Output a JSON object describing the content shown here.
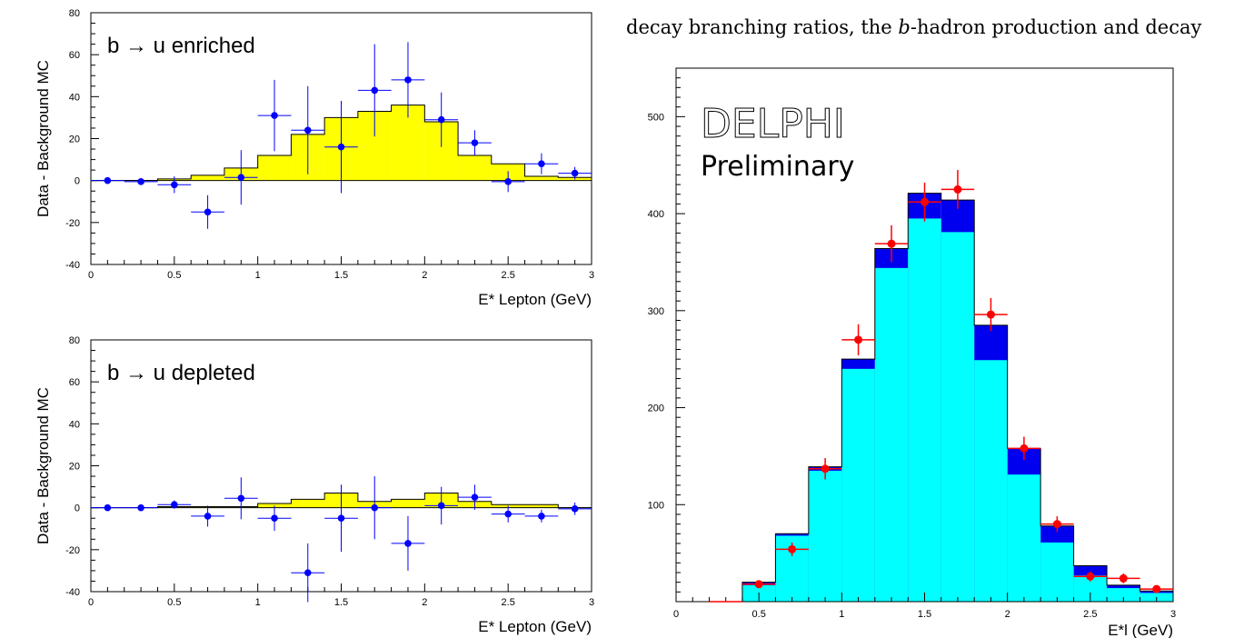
{
  "document": {
    "line1_pre": "decay branching ratios, the ",
    "line1_b": "b",
    "line1_post": "-hadron production and decay"
  },
  "chart_data": [
    {
      "type": "bar",
      "annotation": "b → u enriched",
      "xlabel": "E* Lepton (GeV)",
      "ylabel": "Data - Background MC",
      "xlim": [
        0,
        3
      ],
      "ylim": [
        -40,
        80
      ],
      "xticks": [
        0,
        0.5,
        1,
        1.5,
        2,
        2.5,
        3
      ],
      "yticks": [
        -40,
        -20,
        0,
        20,
        40,
        60,
        80
      ],
      "bin_edges": [
        0,
        0.2,
        0.4,
        0.6,
        0.8,
        1.0,
        1.2,
        1.4,
        1.6,
        1.8,
        2.0,
        2.2,
        2.4,
        2.6,
        2.8,
        3.0
      ],
      "mc_values": [
        0,
        0,
        0.8,
        2.5,
        6,
        12,
        22,
        30,
        33,
        36,
        28,
        12,
        8,
        2,
        1.5
      ],
      "fill_color": "#ffff00",
      "points": {
        "x": [
          0.1,
          0.3,
          0.5,
          0.7,
          0.9,
          1.1,
          1.3,
          1.5,
          1.7,
          1.9,
          2.1,
          2.3,
          2.5,
          2.7,
          2.9
        ],
        "y": [
          0,
          -0.5,
          -2,
          -15,
          1.5,
          31,
          24,
          16,
          43,
          48,
          29,
          18,
          -0.5,
          8,
          3.5
        ],
        "yerr": [
          0.5,
          0.5,
          4,
          8,
          13,
          17,
          21,
          22,
          22,
          18,
          13,
          6,
          5,
          5,
          3
        ],
        "color": "#0000ff"
      }
    },
    {
      "type": "bar",
      "annotation": "b → u depleted",
      "xlabel": "E* Lepton (GeV)",
      "ylabel": "Data - Background MC",
      "xlim": [
        0,
        3
      ],
      "ylim": [
        -40,
        80
      ],
      "xticks": [
        0,
        0.5,
        1,
        1.5,
        2,
        2.5,
        3
      ],
      "yticks": [
        -40,
        -20,
        0,
        20,
        40,
        60,
        80
      ],
      "bin_edges": [
        0,
        0.2,
        0.4,
        0.6,
        0.8,
        1.0,
        1.2,
        1.4,
        1.6,
        1.8,
        2.0,
        2.2,
        2.4,
        2.6,
        2.8,
        3.0
      ],
      "mc_values": [
        0,
        0,
        0.5,
        0.5,
        0.5,
        2,
        4,
        7,
        3,
        4,
        7,
        3,
        1.5,
        1.5,
        0
      ],
      "fill_color": "#ffff00",
      "points": {
        "x": [
          0.1,
          0.3,
          0.5,
          0.7,
          0.9,
          1.1,
          1.3,
          1.5,
          1.7,
          1.9,
          2.1,
          2.3,
          2.5,
          2.7,
          2.9
        ],
        "y": [
          0,
          0,
          1.5,
          -4,
          4.5,
          -5,
          -31,
          -5,
          0,
          -17,
          1,
          5,
          -3,
          -4,
          -0.5
        ],
        "yerr": [
          0.5,
          0.5,
          2,
          5,
          10,
          6,
          14,
          16,
          15,
          13,
          9,
          6,
          4,
          3,
          3
        ],
        "color": "#0000ff"
      }
    },
    {
      "type": "bar",
      "title": "DELPHI",
      "subtitle": "Preliminary",
      "xlabel": "E*l (GeV)",
      "xlim": [
        0,
        3
      ],
      "ylim": [
        0,
        550
      ],
      "xticks": [
        0,
        0.5,
        1,
        1.5,
        2,
        2.5,
        3
      ],
      "yticks": [
        100,
        200,
        300,
        400,
        500
      ],
      "bin_edges": [
        0,
        0.2,
        0.4,
        0.6,
        0.8,
        1.0,
        1.2,
        1.4,
        1.6,
        1.8,
        2.0,
        2.2,
        2.4,
        2.6,
        2.8,
        3.0
      ],
      "series": [
        {
          "values": [
            0,
            0,
            20,
            70,
            139,
            250,
            364,
            421,
            414,
            285,
            158,
            78,
            37,
            17,
            11
          ],
          "color": "#0000ee"
        },
        {
          "values": [
            0,
            0,
            17,
            68,
            135,
            240,
            344,
            395,
            381,
            249,
            131,
            61,
            27,
            14,
            9
          ],
          "color": "#00ffff"
        }
      ],
      "points": {
        "x": [
          0.3,
          0.5,
          0.7,
          0.9,
          1.1,
          1.3,
          1.5,
          1.7,
          1.9,
          2.1,
          2.3,
          2.5,
          2.7,
          2.9
        ],
        "y": [
          0,
          18,
          54,
          137,
          270,
          369,
          412,
          425,
          296,
          158,
          80,
          26,
          24,
          13
        ],
        "yerr": [
          0,
          3,
          7,
          11,
          16,
          19,
          20,
          20,
          17,
          12,
          8,
          5,
          5,
          3
        ],
        "color": "#ff0000"
      }
    }
  ]
}
